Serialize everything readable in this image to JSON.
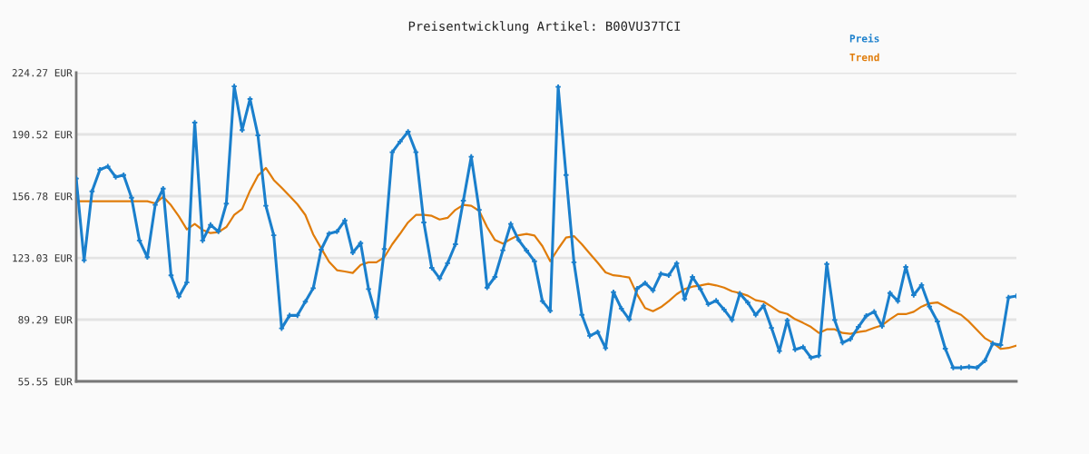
{
  "chart_data": {
    "type": "line",
    "title": "Preisentwicklung Artikel: B00VU37TCI",
    "categories": [
      null,
      null,
      null,
      null,
      null,
      null,
      null,
      null,
      null,
      null,
      null,
      null,
      null,
      null,
      null,
      null,
      null,
      null,
      null,
      null,
      null,
      null,
      null,
      null,
      null,
      null,
      null,
      null,
      null,
      null,
      null,
      null,
      null,
      null,
      null,
      null,
      null,
      null,
      null,
      null,
      null,
      null,
      null,
      null,
      null,
      null,
      null,
      null,
      null,
      null,
      null,
      null,
      null,
      null,
      null,
      null,
      null,
      null,
      null,
      null,
      null,
      null,
      null,
      null,
      null,
      null,
      null,
      null,
      null,
      null,
      null,
      null,
      null,
      null,
      null,
      null,
      null,
      null,
      null,
      null,
      null,
      null,
      null,
      null,
      null,
      null,
      null,
      null,
      null,
      null,
      null,
      null,
      null,
      null,
      null,
      null,
      null,
      null,
      null,
      null,
      null,
      null,
      null,
      null,
      null,
      null,
      null,
      null,
      null,
      null,
      null,
      null,
      null,
      null,
      null,
      null,
      null,
      null,
      null,
      null
    ],
    "series": [
      {
        "name": "Preis",
        "color": "#1a7fcc",
        "marker": "cross",
        "values": [
          166.4,
          121.7,
          159.4,
          171.3,
          173.0,
          167.2,
          168.3,
          155.9,
          132.5,
          123.4,
          152.0,
          160.9,
          113.5,
          101.9,
          109.6,
          197.0,
          132.5,
          141.1,
          137.4,
          152.7,
          216.8,
          192.9,
          209.9,
          190.0,
          151.5,
          135.4,
          84.5,
          91.6,
          91.6,
          99.1,
          106.5,
          127.5,
          136.3,
          137.4,
          143.5,
          125.9,
          131.1,
          106.0,
          90.6,
          127.9,
          180.8,
          186.6,
          192.0,
          180.8,
          142.4,
          117.6,
          111.8,
          120.1,
          130.5,
          154.3,
          178.3,
          149.3,
          106.8,
          112.6,
          127.2,
          141.6,
          132.8,
          127.0,
          121.2,
          99.4,
          94.1,
          216.5,
          168.3,
          120.6,
          91.9,
          80.4,
          82.5,
          73.7,
          104.3,
          95.3,
          89.4,
          106.3,
          109.3,
          105.2,
          114.3,
          113.5,
          120.1,
          100.6,
          112.6,
          106.0,
          97.7,
          99.7,
          94.8,
          89.1,
          103.5,
          98.6,
          91.9,
          96.9,
          84.8,
          72.1,
          88.9,
          72.9,
          74.3,
          68.5,
          69.6,
          119.7,
          89.1,
          76.7,
          78.7,
          85.3,
          91.4,
          93.6,
          85.7,
          103.8,
          99.4,
          118.1,
          102.7,
          108.2,
          96.4,
          88.3,
          73.4,
          63.0,
          63.0,
          63.5,
          63.0,
          66.8,
          76.2,
          75.4,
          101.4,
          102.2
        ]
      },
      {
        "name": "Trend",
        "color": "#e07c0a",
        "marker": "none",
        "values": [
          154.0,
          154.0,
          154.0,
          154.0,
          154.0,
          154.0,
          154.0,
          154.0,
          154.0,
          154.0,
          152.8,
          156.4,
          151.8,
          145.7,
          138.6,
          141.6,
          138.3,
          136.6,
          137.1,
          139.9,
          146.5,
          149.8,
          159.8,
          168.0,
          172.2,
          165.6,
          161.4,
          156.9,
          152.3,
          146.5,
          135.8,
          128.3,
          120.9,
          116.3,
          115.6,
          114.8,
          119.2,
          120.6,
          120.6,
          123.4,
          130.5,
          136.3,
          142.4,
          146.5,
          146.5,
          146.0,
          144.0,
          144.9,
          149.3,
          152.0,
          151.5,
          148.7,
          139.9,
          132.8,
          130.8,
          133.3,
          135.4,
          136.1,
          135.3,
          129.5,
          121.2,
          128.0,
          134.1,
          134.9,
          130.5,
          125.4,
          120.4,
          115.1,
          113.5,
          113.0,
          112.3,
          103.0,
          95.6,
          93.9,
          96.1,
          99.4,
          103.2,
          106.0,
          107.3,
          108.0,
          108.8,
          108.0,
          106.8,
          104.8,
          103.8,
          102.4,
          99.9,
          99.1,
          96.4,
          93.6,
          92.4,
          89.5,
          87.5,
          85.3,
          82.0,
          84.0,
          84.0,
          82.0,
          81.5,
          82.5,
          83.2,
          84.8,
          86.2,
          89.5,
          92.3,
          92.3,
          93.6,
          96.4,
          98.2,
          98.7,
          96.4,
          93.9,
          91.9,
          88.2,
          83.7,
          79.2,
          76.7,
          73.3,
          73.8,
          75.1
        ]
      }
    ],
    "ylim": [
      55.55,
      224.27
    ],
    "yticks": [
      {
        "value": 55.55,
        "label": "55.55 EUR"
      },
      {
        "value": 89.29,
        "label": "89.29 EUR"
      },
      {
        "value": 123.03,
        "label": "123.03 EUR"
      },
      {
        "value": 156.78,
        "label": "156.78 EUR"
      },
      {
        "value": 190.52,
        "label": "190.52 EUR"
      },
      {
        "value": 224.27,
        "label": "224.27 EUR"
      }
    ],
    "grid": "y",
    "legend": "top right",
    "line_style": "solid"
  }
}
